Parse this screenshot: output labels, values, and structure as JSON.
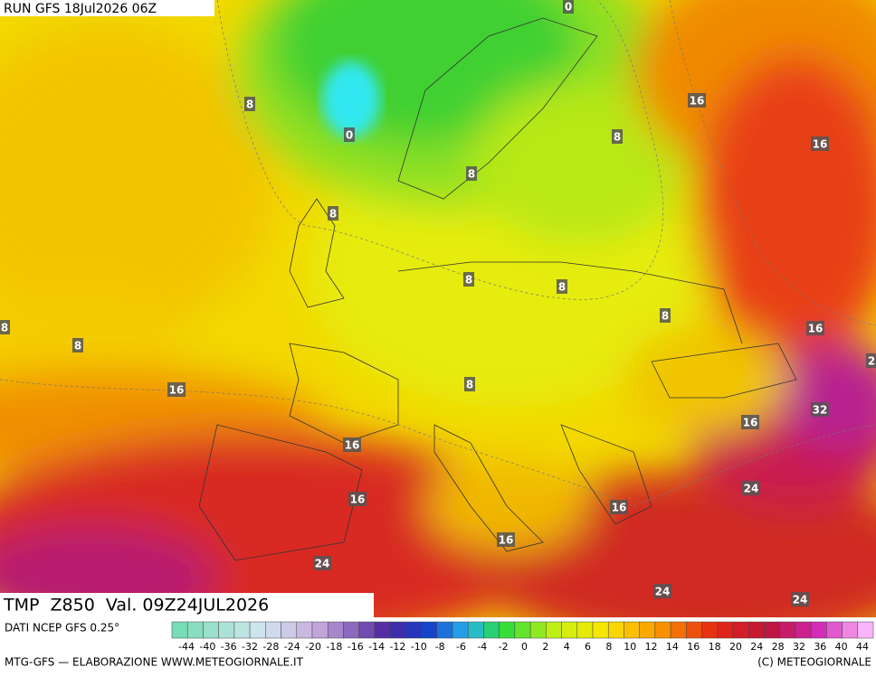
{
  "header": {
    "run": "RUN GFS 18Jul2026 06Z"
  },
  "map": {
    "contour_labels": [
      "0",
      "8",
      "0",
      "16",
      "8",
      "16",
      "8",
      "8",
      "8",
      "8",
      "8",
      "8",
      "8",
      "16",
      "16",
      "8",
      "2",
      "32",
      "16",
      "16",
      "24",
      "16",
      "16",
      "16",
      "24",
      "24",
      "24"
    ]
  },
  "title": "TMP  Z850  Val. 09Z24JUL2026",
  "legend": {
    "source": "DATI NCEP GFS 0.25°",
    "labels": [
      -44,
      -40,
      -36,
      -32,
      -28,
      -24,
      -20,
      -18,
      -16,
      -14,
      -12,
      -10,
      -8,
      -6,
      -4,
      -2,
      0,
      2,
      4,
      6,
      8,
      10,
      12,
      14,
      16,
      18,
      20,
      24,
      28,
      32,
      36,
      40,
      44
    ]
  },
  "footer": {
    "left": "MTG-GFS — ELABORAZIONE WWW.METEOGIORNALE.IT",
    "right": "(C) METEOGIORNALE"
  }
}
